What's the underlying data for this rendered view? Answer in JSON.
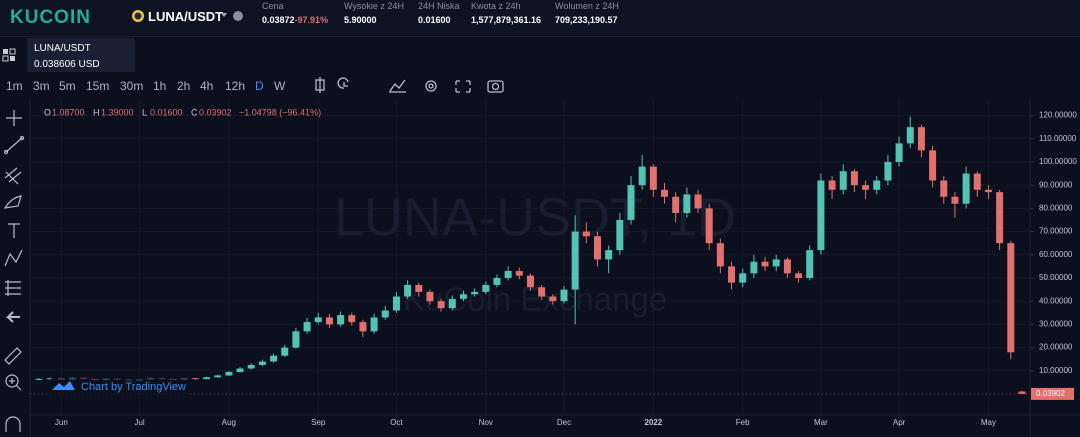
{
  "header": {
    "logo": "KUCOIN",
    "pair": "LUNA/USDT",
    "stats": [
      {
        "label": "Cena",
        "value": "0.03872",
        "change": "-97.91%"
      },
      {
        "label": "Wysokie z 24H",
        "value": "5.90000"
      },
      {
        "label": "24H Niska",
        "value": "0.01600"
      },
      {
        "label": "Kwota z 24h",
        "value": "1,577,879,361.16"
      },
      {
        "label": "Wolumen z 24H",
        "value": "709,233,190.57"
      }
    ]
  },
  "symbol": {
    "name": "LUNA/USDT",
    "price": "0.038606 USD"
  },
  "toolbar": {
    "intervals": [
      "1m",
      "3m",
      "5m",
      "15m",
      "30m",
      "1h",
      "2h",
      "4h",
      "12h",
      "D",
      "W"
    ]
  },
  "chart_data": {
    "type": "candlestick",
    "watermark": "LUNA-USDT, 1D",
    "watermark_sub": "KuCoin Exchange",
    "credit": "Chart by TradingView",
    "ohlc_legend": [
      {
        "key": "O",
        "label": "1.08700"
      },
      {
        "key": "H",
        "label": "1.39000"
      },
      {
        "key": "L",
        "label": "0.01600"
      },
      {
        "key": "C",
        "label": "0.03902"
      }
    ],
    "change_label": "−1.04798 (−96.41%)",
    "last_price_label": "0.03902",
    "up_color": "#53c4b4",
    "down_color": "#e2706c",
    "grid": true,
    "categories": [
      null,
      null,
      "Jun",
      null,
      null,
      null,
      null,
      null,
      null,
      "Jul",
      null,
      null,
      null,
      null,
      null,
      null,
      null,
      "Aug",
      null,
      null,
      null,
      null,
      null,
      null,
      null,
      "Sep",
      null,
      null,
      null,
      null,
      null,
      null,
      "Oct",
      null,
      null,
      null,
      null,
      null,
      null,
      null,
      "Nov",
      null,
      null,
      null,
      null,
      null,
      null,
      "Dec",
      null,
      null,
      null,
      null,
      null,
      null,
      null,
      "2022",
      null,
      null,
      null,
      null,
      null,
      null,
      null,
      "Feb",
      null,
      null,
      null,
      null,
      null,
      null,
      "Mar",
      null,
      null,
      null,
      null,
      null,
      null,
      "Apr",
      null,
      null,
      null,
      null,
      null,
      null,
      null,
      "May",
      null,
      null,
      null
    ],
    "open": [
      6.2,
      6.5,
      6.8,
      6.2,
      7.0,
      6.5,
      6.0,
      6.6,
      6.2,
      5.8,
      6.3,
      6.9,
      6.5,
      6.2,
      6.8,
      6.4,
      7.2,
      8.0,
      9.5,
      11.0,
      12.5,
      14.0,
      16.5,
      20.0,
      27.0,
      31.0,
      33.0,
      30.0,
      34.0,
      31.0,
      27.0,
      33.0,
      36.0,
      42.0,
      47.0,
      44.0,
      40.0,
      37.0,
      41.0,
      43.0,
      44.0,
      47.0,
      50.0,
      53.0,
      51.0,
      46.0,
      42.0,
      40.0,
      45.0,
      70.0,
      68.0,
      58.0,
      62.0,
      75.0,
      90.0,
      98.0,
      88.0,
      85.0,
      78.0,
      86.0,
      80.0,
      65.0,
      55.0,
      48.0,
      52.0,
      57.0,
      55.0,
      58.0,
      52.0,
      50.0,
      62.0,
      92.0,
      88.0,
      96.0,
      90.0,
      88.0,
      92.0,
      100.0,
      108.0,
      115.0,
      105.0,
      92.0,
      85.0,
      82.0,
      95.0,
      88.0,
      87.0,
      65.0,
      1.087
    ],
    "high": [
      6.9,
      7.1,
      7.0,
      7.3,
      7.2,
      6.7,
      6.9,
      6.8,
      6.4,
      6.5,
      7.1,
      7.0,
      6.6,
      7.0,
      7.0,
      7.5,
      8.4,
      9.9,
      11.6,
      13.2,
      14.8,
      17.4,
      21.2,
      28.5,
      32.8,
      35.0,
      34.5,
      35.5,
      35.0,
      32.0,
      34.5,
      38.0,
      44.0,
      49.0,
      48.0,
      45.0,
      41.0,
      42.5,
      44.5,
      45.5,
      48.5,
      51.5,
      55.0,
      54.5,
      52.0,
      47.0,
      43.0,
      46.5,
      77.0,
      74.0,
      70.0,
      64.0,
      78.0,
      94.0,
      103.0,
      99.0,
      91.0,
      87.0,
      89.0,
      88.0,
      82.0,
      67.0,
      57.0,
      54.0,
      60.0,
      59.0,
      60.0,
      59.0,
      53.0,
      64.0,
      95.0,
      94.0,
      99.0,
      97.0,
      92.0,
      94.0,
      103.0,
      111.0,
      119.5,
      116.0,
      107.0,
      94.0,
      87.0,
      98.0,
      96.0,
      90.0,
      88.0,
      66.0,
      1.39
    ],
    "low": [
      6.0,
      6.3,
      6.0,
      6.0,
      6.3,
      5.8,
      5.9,
      6.0,
      5.6,
      5.7,
      6.2,
      6.3,
      6.0,
      6.1,
      6.2,
      6.3,
      7.0,
      7.8,
      9.2,
      10.6,
      12.0,
      13.5,
      16.0,
      19.5,
      26.0,
      30.0,
      28.5,
      29.0,
      29.5,
      24.5,
      26.0,
      32.0,
      35.0,
      41.0,
      42.0,
      38.5,
      35.5,
      36.0,
      40.0,
      42.0,
      43.0,
      46.0,
      49.0,
      49.5,
      44.5,
      40.5,
      38.5,
      39.0,
      30.0,
      65.0,
      55.0,
      52.0,
      60.0,
      73.0,
      88.0,
      85.0,
      82.0,
      74.0,
      76.0,
      78.0,
      62.0,
      52.0,
      45.0,
      46.0,
      50.0,
      53.0,
      53.0,
      50.0,
      48.0,
      49.0,
      60.0,
      84.0,
      86.0,
      87.0,
      84.0,
      86.0,
      90.0,
      98.0,
      106.0,
      102.0,
      89.0,
      82.0,
      76.0,
      80.0,
      85.0,
      84.0,
      62.0,
      15.0,
      0.016
    ],
    "close": [
      6.5,
      6.8,
      6.2,
      7.0,
      6.5,
      6.0,
      6.6,
      6.2,
      5.8,
      6.3,
      6.9,
      6.5,
      6.2,
      6.8,
      6.4,
      7.2,
      8.0,
      9.5,
      11.0,
      12.5,
      14.0,
      16.5,
      20.0,
      27.0,
      31.0,
      33.0,
      30.0,
      34.0,
      31.0,
      27.0,
      33.0,
      36.0,
      42.0,
      47.0,
      44.0,
      40.0,
      37.0,
      41.0,
      43.0,
      44.0,
      47.0,
      50.0,
      53.0,
      51.0,
      46.0,
      42.0,
      40.0,
      45.0,
      70.0,
      68.0,
      58.0,
      62.0,
      75.0,
      90.0,
      98.0,
      88.0,
      85.0,
      78.0,
      86.0,
      80.0,
      65.0,
      55.0,
      48.0,
      52.0,
      57.0,
      55.0,
      58.0,
      52.0,
      50.0,
      62.0,
      92.0,
      88.0,
      96.0,
      90.0,
      88.0,
      92.0,
      100.0,
      108.0,
      115.0,
      105.0,
      92.0,
      85.0,
      82.0,
      95.0,
      88.0,
      87.0,
      65.0,
      18.0,
      0.03902
    ],
    "ylim": [
      -9.05,
      126.7
    ],
    "yticks": [
      {
        "value": 10,
        "label": "10.00000"
      },
      {
        "value": 20,
        "label": "20.00000"
      },
      {
        "value": 30,
        "label": "30.00000"
      },
      {
        "value": 40,
        "label": "40.00000"
      },
      {
        "value": 50,
        "label": "50.00000"
      },
      {
        "value": 60,
        "label": "60.00000"
      },
      {
        "value": 70,
        "label": "70.00000"
      },
      {
        "value": 80,
        "label": "80.00000"
      },
      {
        "value": 90,
        "label": "90.00000"
      },
      {
        "value": 100,
        "label": "100.00000"
      },
      {
        "value": 110,
        "label": "110.00000"
      },
      {
        "value": 120,
        "label": "120.00000"
      }
    ]
  }
}
